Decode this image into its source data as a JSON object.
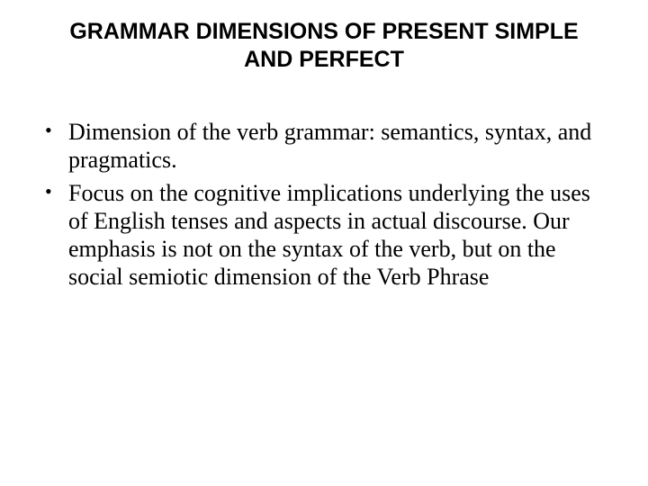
{
  "title": "GRAMMAR DIMENSIONS OF PRESENT SIMPLE AND PERFECT",
  "bullets": [
    "Dimension of the verb grammar: semantics, syntax, and pragmatics.",
    "Focus on the cognitive implications underlying the uses of English tenses and aspects in actual discourse. Our emphasis is not on the syntax of the verb, but on the social semiotic dimension of the Verb Phrase"
  ],
  "colors": {
    "background": "#ffffff",
    "text": "#000000"
  },
  "typography": {
    "title_font": "Arial",
    "title_fontsize": 25,
    "body_font": "Times New Roman",
    "body_fontsize": 26
  }
}
